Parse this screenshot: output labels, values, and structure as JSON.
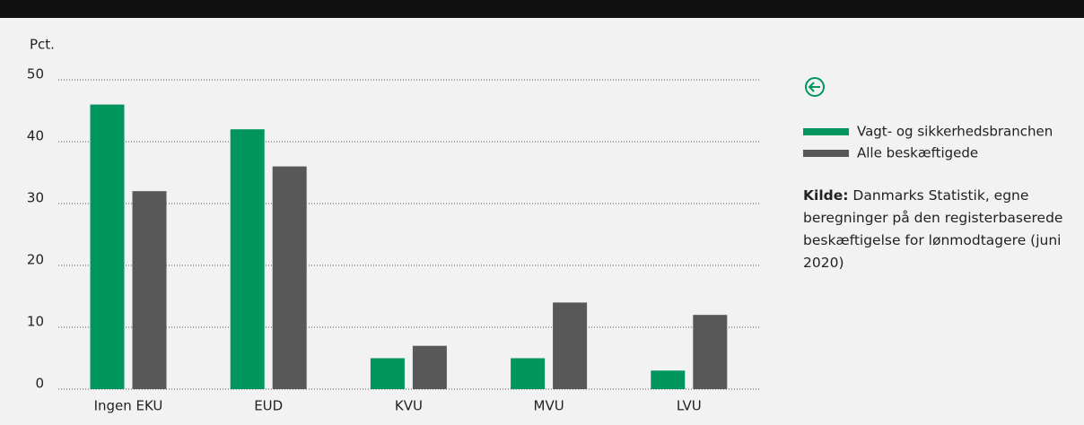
{
  "chart_data": {
    "type": "bar",
    "y_label": "Pct.",
    "categories": [
      "Ingen EKU",
      "EUD",
      "KVU",
      "MVU",
      "LVU"
    ],
    "series": [
      {
        "name": "Vagt- og sikkerhedsbranchen",
        "color": "#00965e",
        "values": [
          46,
          42,
          5,
          5,
          3
        ]
      },
      {
        "name": "Alle beskæftigede",
        "color": "#585858",
        "values": [
          32,
          36,
          7,
          14,
          12
        ]
      }
    ],
    "ylim": [
      0,
      50
    ],
    "yticks": [
      0,
      10,
      20,
      30,
      40,
      50
    ],
    "grid": true,
    "legend": "right",
    "source": {
      "label": "Kilde:",
      "text": "Danmarks Statistik, egne beregninger på den registerbaserede beskæftigelse for lønmodtagere (juni 2020)"
    }
  }
}
